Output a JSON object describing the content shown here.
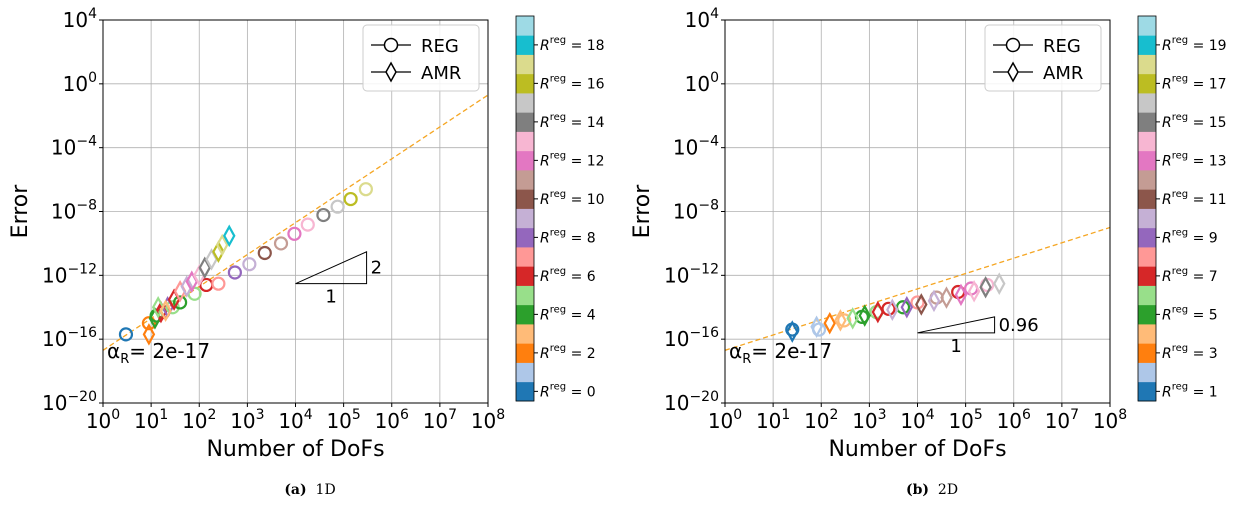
{
  "chart_data": [
    {
      "type": "scatter",
      "caption_tag": "(a)",
      "caption_text": "1D",
      "xlabel": "Number of DoFs",
      "ylabel": "Error",
      "x_scale": "log",
      "y_scale": "log",
      "xlim": [
        1,
        100000000
      ],
      "ylim": [
        1e-20,
        10000
      ],
      "x_ticks": [
        {
          "base": "10",
          "exp": "0"
        },
        {
          "base": "10",
          "exp": "1"
        },
        {
          "base": "10",
          "exp": "2"
        },
        {
          "base": "10",
          "exp": "3"
        },
        {
          "base": "10",
          "exp": "4"
        },
        {
          "base": "10",
          "exp": "5"
        },
        {
          "base": "10",
          "exp": "6"
        },
        {
          "base": "10",
          "exp": "7"
        },
        {
          "base": "10",
          "exp": "8"
        }
      ],
      "y_ticks": [
        {
          "base": "10",
          "exp": "4"
        },
        {
          "base": "10",
          "exp": "0"
        },
        {
          "base": "10",
          "exp": "−4"
        },
        {
          "base": "10",
          "exp": "−8"
        },
        {
          "base": "10",
          "exp": "−12"
        },
        {
          "base": "10",
          "exp": "−16"
        },
        {
          "base": "10",
          "exp": "−20"
        }
      ],
      "grid": true,
      "legend": {
        "placement": "top-right",
        "entries": [
          {
            "label": "REG",
            "marker": "circle"
          },
          {
            "label": "AMR",
            "marker": "diamond"
          }
        ]
      },
      "annotation": {
        "lhs": "α",
        "sub": "R",
        "rhs": "= 2e-17"
      },
      "slope_triangle": {
        "run_label": "1",
        "rise_label": "2"
      },
      "fit_line": {
        "points": [
          [
            1,
            2e-17
          ],
          [
            100000000,
            0.2
          ]
        ],
        "color": "#f5a623",
        "dashed": true
      },
      "colorbar": {
        "colors": [
          "#1f77b4",
          "#aec7e8",
          "#ff7f0e",
          "#ffbb78",
          "#2ca02c",
          "#98df8a",
          "#d62728",
          "#ff9896",
          "#9467bd",
          "#c5b0d5",
          "#8c564b",
          "#c49c94",
          "#e377c2",
          "#f7b6d2",
          "#7f7f7f",
          "#c7c7c7",
          "#bcbd22",
          "#dbdb8d",
          "#17becf",
          "#9edae5"
        ],
        "labels": [
          {
            "index": 0,
            "var": "R",
            "sup": "reg",
            "value": "= 0"
          },
          {
            "index": 2,
            "var": "R",
            "sup": "reg",
            "value": "= 2"
          },
          {
            "index": 4,
            "var": "R",
            "sup": "reg",
            "value": "= 4"
          },
          {
            "index": 6,
            "var": "R",
            "sup": "reg",
            "value": "= 6"
          },
          {
            "index": 8,
            "var": "R",
            "sup": "reg",
            "value": "= 8"
          },
          {
            "index": 10,
            "var": "R",
            "sup": "reg",
            "value": "= 10"
          },
          {
            "index": 12,
            "var": "R",
            "sup": "reg",
            "value": "= 12"
          },
          {
            "index": 14,
            "var": "R",
            "sup": "reg",
            "value": "= 14"
          },
          {
            "index": 16,
            "var": "R",
            "sup": "reg",
            "value": "= 16"
          },
          {
            "index": 18,
            "var": "R",
            "sup": "reg",
            "value": "= 18"
          }
        ]
      },
      "series": [
        {
          "marker": "circle",
          "points": [
            {
              "x": 3,
              "y": 2e-16,
              "c": 0
            },
            {
              "x": 9,
              "y": 1e-15,
              "c": 2
            },
            {
              "x": 13,
              "y": 3e-15,
              "c": 4
            },
            {
              "x": 18,
              "y": 5e-15,
              "c": 6
            },
            {
              "x": 28,
              "y": 1e-14,
              "c": 5
            },
            {
              "x": 40,
              "y": 2e-14,
              "c": 4
            },
            {
              "x": 80,
              "y": 7e-14,
              "c": 5
            },
            {
              "x": 140,
              "y": 2.5e-13,
              "c": 6
            },
            {
              "x": 250,
              "y": 3e-13,
              "c": 7
            },
            {
              "x": 550,
              "y": 1.5e-12,
              "c": 8
            },
            {
              "x": 1100,
              "y": 5e-12,
              "c": 9
            },
            {
              "x": 2300,
              "y": 2.5e-11,
              "c": 10
            },
            {
              "x": 5000,
              "y": 1e-10,
              "c": 11
            },
            {
              "x": 9500,
              "y": 4e-10,
              "c": 12
            },
            {
              "x": 18000,
              "y": 1.5e-09,
              "c": 13
            },
            {
              "x": 38000,
              "y": 6e-09,
              "c": 14
            },
            {
              "x": 75000,
              "y": 2e-08,
              "c": 15
            },
            {
              "x": 140000,
              "y": 6e-08,
              "c": 16
            },
            {
              "x": 290000,
              "y": 2.5e-07,
              "c": 17
            }
          ]
        },
        {
          "marker": "diamond",
          "points": [
            {
              "x": 9,
              "y": 2e-16,
              "c": 2
            },
            {
              "x": 12,
              "y": 2e-15,
              "c": 4
            },
            {
              "x": 16,
              "y": 5e-15,
              "c": 6
            },
            {
              "x": 22,
              "y": 1e-14,
              "c": 8
            },
            {
              "x": 30,
              "y": 3e-14,
              "c": 6
            },
            {
              "x": 40,
              "y": 1e-13,
              "c": 7
            },
            {
              "x": 55,
              "y": 2e-13,
              "c": 9
            },
            {
              "x": 70,
              "y": 4e-13,
              "c": 12
            },
            {
              "x": 100,
              "y": 1e-12,
              "c": 13
            },
            {
              "x": 130,
              "y": 3e-12,
              "c": 14
            },
            {
              "x": 180,
              "y": 1e-11,
              "c": 15
            },
            {
              "x": 250,
              "y": 3e-11,
              "c": 16
            },
            {
              "x": 300,
              "y": 8e-11,
              "c": 17
            },
            {
              "x": 420,
              "y": 3e-10,
              "c": 18
            },
            {
              "x": 14,
              "y": 1e-14,
              "c": 5
            },
            {
              "x": 20,
              "y": 6e-15,
              "c": 3
            }
          ]
        }
      ]
    },
    {
      "type": "scatter",
      "caption_tag": "(b)",
      "caption_text": "2D",
      "xlabel": "Number of DoFs",
      "ylabel": "Error",
      "x_scale": "log",
      "y_scale": "log",
      "xlim": [
        1,
        100000000
      ],
      "ylim": [
        1e-20,
        10000
      ],
      "x_ticks": [
        {
          "base": "10",
          "exp": "0"
        },
        {
          "base": "10",
          "exp": "1"
        },
        {
          "base": "10",
          "exp": "2"
        },
        {
          "base": "10",
          "exp": "3"
        },
        {
          "base": "10",
          "exp": "4"
        },
        {
          "base": "10",
          "exp": "5"
        },
        {
          "base": "10",
          "exp": "6"
        },
        {
          "base": "10",
          "exp": "7"
        },
        {
          "base": "10",
          "exp": "8"
        }
      ],
      "y_ticks": [
        {
          "base": "10",
          "exp": "4"
        },
        {
          "base": "10",
          "exp": "0"
        },
        {
          "base": "10",
          "exp": "−4"
        },
        {
          "base": "10",
          "exp": "−8"
        },
        {
          "base": "10",
          "exp": "−12"
        },
        {
          "base": "10",
          "exp": "−16"
        },
        {
          "base": "10",
          "exp": "−20"
        }
      ],
      "grid": true,
      "legend": {
        "placement": "top-right",
        "entries": [
          {
            "label": "REG",
            "marker": "circle"
          },
          {
            "label": "AMR",
            "marker": "diamond"
          }
        ]
      },
      "annotation": {
        "lhs": "α",
        "sub": "R",
        "rhs": "= 2e-17"
      },
      "slope_triangle": {
        "run_label": "1",
        "rise_label": "0.96"
      },
      "fit_line": {
        "points": [
          [
            1,
            2e-17
          ],
          [
            100000000,
            1e-09
          ]
        ],
        "color": "#f5a623",
        "dashed": true
      },
      "colorbar": {
        "colors": [
          "#1f77b4",
          "#aec7e8",
          "#ff7f0e",
          "#ffbb78",
          "#2ca02c",
          "#98df8a",
          "#d62728",
          "#ff9896",
          "#9467bd",
          "#c5b0d5",
          "#8c564b",
          "#c49c94",
          "#e377c2",
          "#f7b6d2",
          "#7f7f7f",
          "#c7c7c7",
          "#bcbd22",
          "#dbdb8d",
          "#17becf",
          "#9edae5"
        ],
        "labels": [
          {
            "index": 0,
            "var": "R",
            "sup": "reg",
            "value": "= 1"
          },
          {
            "index": 2,
            "var": "R",
            "sup": "reg",
            "value": "= 3"
          },
          {
            "index": 4,
            "var": "R",
            "sup": "reg",
            "value": "= 5"
          },
          {
            "index": 6,
            "var": "R",
            "sup": "reg",
            "value": "= 7"
          },
          {
            "index": 8,
            "var": "R",
            "sup": "reg",
            "value": "= 9"
          },
          {
            "index": 10,
            "var": "R",
            "sup": "reg",
            "value": "= 11"
          },
          {
            "index": 12,
            "var": "R",
            "sup": "reg",
            "value": "= 13"
          },
          {
            "index": 14,
            "var": "R",
            "sup": "reg",
            "value": "= 15"
          },
          {
            "index": 16,
            "var": "R",
            "sup": "reg",
            "value": "= 17"
          },
          {
            "index": 18,
            "var": "R",
            "sup": "reg",
            "value": "= 19"
          }
        ]
      },
      "series": [
        {
          "marker": "circle",
          "points": [
            {
              "x": 25,
              "y": 4e-16,
              "c": 0
            },
            {
              "x": 90,
              "y": 4e-16,
              "c": 1
            },
            {
              "x": 300,
              "y": 1.5e-15,
              "c": 3
            },
            {
              "x": 700,
              "y": 2.5e-15,
              "c": 4
            },
            {
              "x": 1400,
              "y": 5e-15,
              "c": 5
            },
            {
              "x": 2500,
              "y": 8e-15,
              "c": 6
            },
            {
              "x": 5000,
              "y": 1e-14,
              "c": 4
            },
            {
              "x": 10000,
              "y": 2e-14,
              "c": 7
            },
            {
              "x": 25000,
              "y": 4e-14,
              "c": 11
            },
            {
              "x": 70000,
              "y": 9e-14,
              "c": 6
            },
            {
              "x": 130000,
              "y": 1.5e-13,
              "c": 12
            },
            {
              "x": 280000,
              "y": 2.5e-13,
              "c": 13
            }
          ]
        },
        {
          "marker": "diamond",
          "points": [
            {
              "x": 25,
              "y": 3e-16,
              "c": 0
            },
            {
              "x": 80,
              "y": 6e-16,
              "c": 1
            },
            {
              "x": 150,
              "y": 1e-15,
              "c": 2
            },
            {
              "x": 250,
              "y": 1.5e-15,
              "c": 3
            },
            {
              "x": 450,
              "y": 2e-15,
              "c": 5
            },
            {
              "x": 800,
              "y": 3e-15,
              "c": 4
            },
            {
              "x": 1500,
              "y": 5e-15,
              "c": 6
            },
            {
              "x": 3000,
              "y": 7e-15,
              "c": 9
            },
            {
              "x": 6000,
              "y": 1e-14,
              "c": 8
            },
            {
              "x": 12000,
              "y": 1.5e-14,
              "c": 10
            },
            {
              "x": 22000,
              "y": 2.5e-14,
              "c": 9
            },
            {
              "x": 40000,
              "y": 4e-14,
              "c": 11
            },
            {
              "x": 80000,
              "y": 6e-14,
              "c": 12
            },
            {
              "x": 150000,
              "y": 1e-13,
              "c": 13
            },
            {
              "x": 260000,
              "y": 1.8e-13,
              "c": 14
            },
            {
              "x": 500000,
              "y": 3e-13,
              "c": 15
            }
          ]
        }
      ]
    }
  ]
}
